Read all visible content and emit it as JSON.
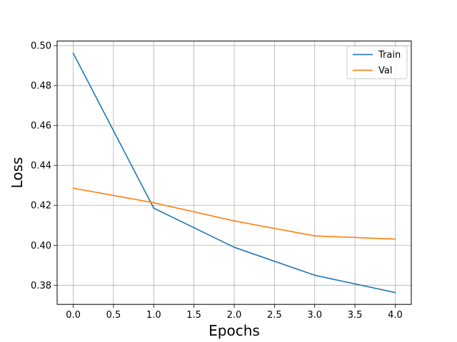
{
  "chart_data": {
    "type": "line",
    "title": "",
    "xlabel": "Epochs",
    "ylabel": "Loss",
    "x": [
      0,
      1,
      2,
      3,
      4
    ],
    "series": [
      {
        "name": "Train",
        "values": [
          0.4962,
          0.4186,
          0.399,
          0.385,
          0.3763
        ],
        "color": "#1f77b4"
      },
      {
        "name": "Val",
        "values": [
          0.4286,
          0.4213,
          0.4122,
          0.4047,
          0.4031
        ],
        "color": "#ff7f0e"
      }
    ],
    "xlim": [
      -0.2,
      4.2
    ],
    "ylim": [
      0.3704,
      0.5023
    ],
    "xticks": [
      0.0,
      0.5,
      1.0,
      1.5,
      2.0,
      2.5,
      3.0,
      3.5,
      4.0
    ],
    "xtick_labels": [
      "0.0",
      "0.5",
      "1.0",
      "1.5",
      "2.0",
      "2.5",
      "3.0",
      "3.5",
      "4.0"
    ],
    "yticks": [
      0.38,
      0.4,
      0.42,
      0.44,
      0.46,
      0.48,
      0.5
    ],
    "ytick_labels": [
      "0.38",
      "0.40",
      "0.42",
      "0.44",
      "0.46",
      "0.48",
      "0.50"
    ],
    "grid": true,
    "legend_position": "top-right"
  }
}
